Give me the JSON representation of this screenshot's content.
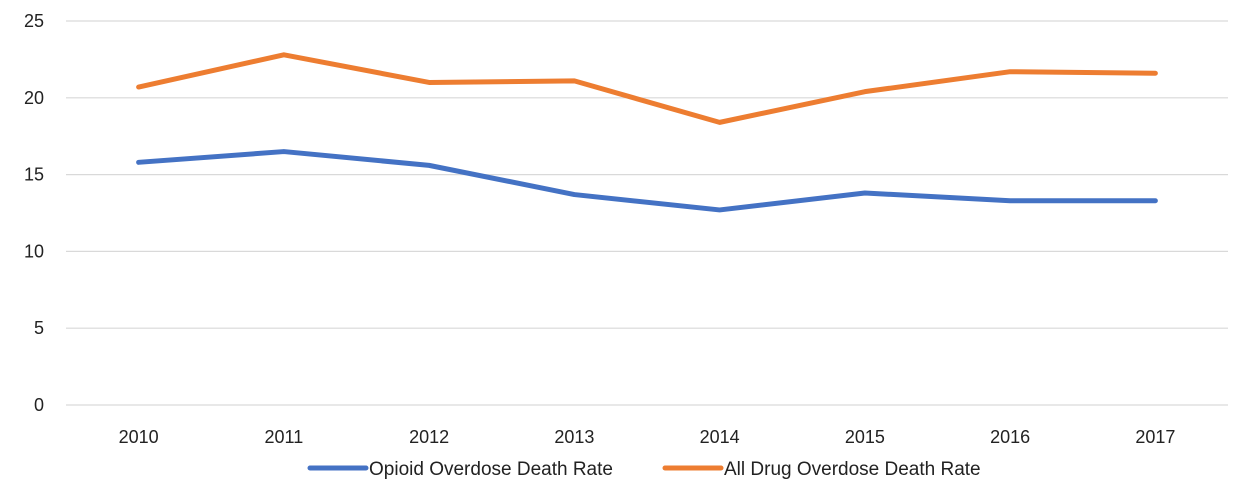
{
  "chart_data": {
    "type": "line",
    "title": "",
    "xlabel": "",
    "ylabel": "",
    "categories": [
      "2010",
      "2011",
      "2012",
      "2013",
      "2014",
      "2015",
      "2016",
      "2017"
    ],
    "ylim": [
      0,
      25
    ],
    "yticks": [
      0,
      5,
      10,
      15,
      20,
      25
    ],
    "grid": true,
    "legend": "bottom",
    "series": [
      {
        "name": "Opioid Overdose Death Rate",
        "color": "#4472c4",
        "values": [
          15.8,
          16.5,
          15.6,
          13.7,
          12.7,
          13.8,
          13.3,
          13.3
        ]
      },
      {
        "name": "All Drug Overdose Death Rate",
        "color": "#ed7d31",
        "values": [
          20.7,
          22.8,
          21.0,
          21.1,
          18.4,
          20.4,
          21.7,
          21.6
        ]
      }
    ]
  }
}
